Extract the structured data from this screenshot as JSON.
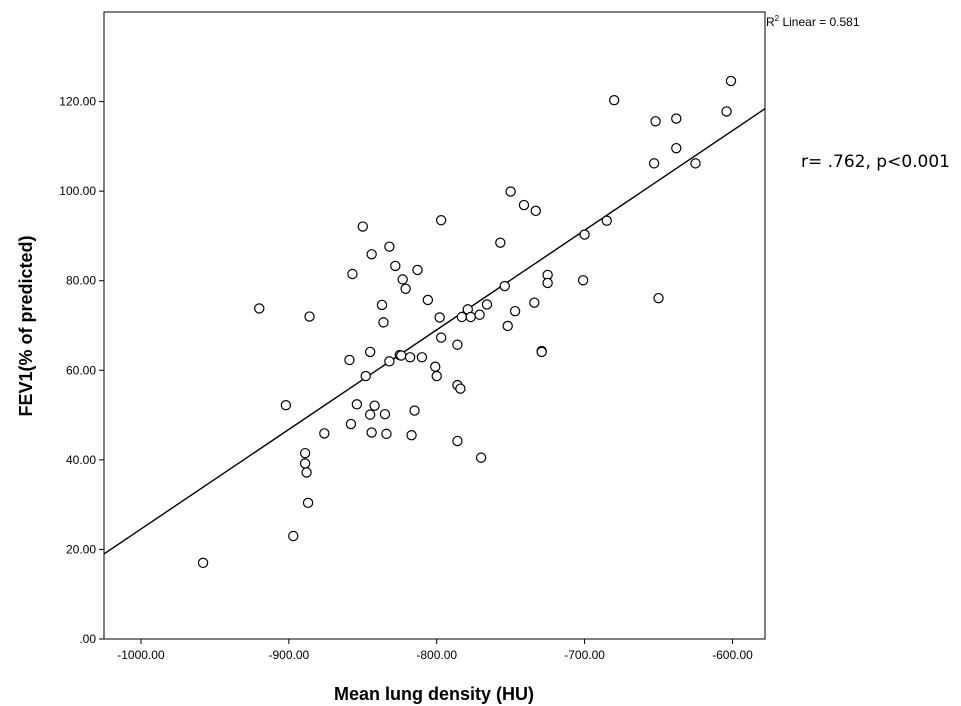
{
  "chart_data": {
    "type": "scatter",
    "title": "",
    "xlabel": "Mean lung density (HU)",
    "ylabel": "FEV1(% of predicted)",
    "xlim": [
      -1025,
      -578
    ],
    "ylim": [
      0,
      140
    ],
    "x_ticks": [
      -1000,
      -900,
      -800,
      -700,
      -600
    ],
    "x_tick_labels": [
      "-1000.00",
      "-900.00",
      "-800.00",
      "-700.00",
      "-600.00"
    ],
    "y_ticks": [
      0,
      20,
      40,
      60,
      80,
      100,
      120
    ],
    "y_tick_labels": [
      ".00",
      "20.00",
      "40.00",
      "60.00",
      "80.00",
      "100.00",
      "120.00"
    ],
    "grid": false,
    "fit_line": {
      "type": "linear",
      "x": [
        -1025,
        -578
      ],
      "y": [
        19,
        118.4
      ]
    },
    "r_squared_label": {
      "prefix": "R",
      "sup": "2",
      "text": " Linear = 0.581"
    },
    "annotation": "r= .762, p<0.001",
    "points": [
      [
        -958,
        17
      ],
      [
        -920,
        73.8
      ],
      [
        -902,
        52.2
      ],
      [
        -897,
        23
      ],
      [
        -889,
        41.5
      ],
      [
        -889,
        39.2
      ],
      [
        -888,
        37.2
      ],
      [
        -887,
        30.4
      ],
      [
        -886,
        72
      ],
      [
        -876,
        45.9
      ],
      [
        -859,
        62.3
      ],
      [
        -858,
        48
      ],
      [
        -857,
        81.5
      ],
      [
        -854,
        52.4
      ],
      [
        -850,
        92.1
      ],
      [
        -848,
        58.7
      ],
      [
        -845,
        50.1
      ],
      [
        -845,
        64.1
      ],
      [
        -844,
        85.9
      ],
      [
        -844,
        46.1
      ],
      [
        -842,
        52.1
      ],
      [
        -837,
        74.6
      ],
      [
        -836,
        70.7
      ],
      [
        -835,
        50.2
      ],
      [
        -834,
        45.8
      ],
      [
        -832,
        62
      ],
      [
        -832,
        87.6
      ],
      [
        -828,
        83.3
      ],
      [
        -825,
        63.4
      ],
      [
        -824,
        63.3
      ],
      [
        -823,
        80.3
      ],
      [
        -821,
        78.2
      ],
      [
        -818,
        62.9
      ],
      [
        -817,
        45.5
      ],
      [
        -815,
        51
      ],
      [
        -813,
        82.4
      ],
      [
        -810,
        62.9
      ],
      [
        -806,
        75.7
      ],
      [
        -801,
        60.8
      ],
      [
        -800,
        58.7
      ],
      [
        -798,
        71.8
      ],
      [
        -797,
        93.5
      ],
      [
        -797,
        67.3
      ],
      [
        -786,
        65.7
      ],
      [
        -786,
        56.7
      ],
      [
        -786,
        44.2
      ],
      [
        -784,
        55.9
      ],
      [
        -783,
        71.9
      ],
      [
        -779,
        73.6
      ],
      [
        -777,
        71.9
      ],
      [
        -771,
        72.4
      ],
      [
        -770,
        40.5
      ],
      [
        -766,
        74.7
      ],
      [
        -757,
        88.5
      ],
      [
        -754,
        78.8
      ],
      [
        -752,
        69.9
      ],
      [
        -750,
        99.9
      ],
      [
        -747,
        73.2
      ],
      [
        -741,
        96.9
      ],
      [
        -734,
        75.1
      ],
      [
        -733,
        95.6
      ],
      [
        -729,
        64.3
      ],
      [
        -729,
        64.1
      ],
      [
        -725,
        81.3
      ],
      [
        -725,
        79.5
      ],
      [
        -701,
        80.1
      ],
      [
        -700,
        90.3
      ],
      [
        -685,
        93.4
      ],
      [
        -680,
        120.3
      ],
      [
        -653,
        106.2
      ],
      [
        -652,
        115.6
      ],
      [
        -650,
        76.1
      ],
      [
        -638,
        116.2
      ],
      [
        -638,
        109.6
      ],
      [
        -625,
        106.2
      ],
      [
        -604,
        117.8
      ],
      [
        -601,
        124.6
      ]
    ]
  }
}
